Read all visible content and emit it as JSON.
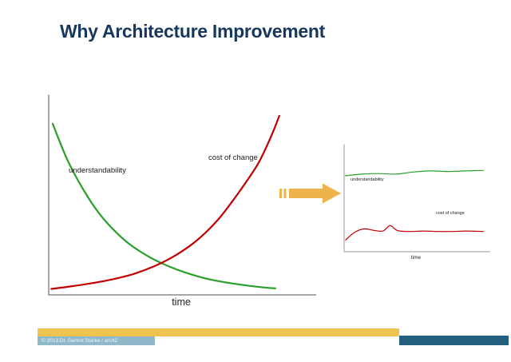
{
  "slide": {
    "title": "Why Architecture Improvement",
    "footer": {
      "copyright": "© 2013 Dr. Gernot Starke / arc42"
    }
  },
  "colors": {
    "title": "#17375d",
    "understandability_line": "#2aa02a",
    "cost_of_change_line": "#c00000",
    "arrow": "#edb44c",
    "footer_yellow_bar": "#f0c24f",
    "footer_light_blue_bar": "#8fb9cb",
    "footer_dark_blue_bar": "#235e7d"
  },
  "chart_data": [
    {
      "type": "line",
      "title": "",
      "xlabel": "time",
      "ylabel": "",
      "xlim": [
        0,
        10
      ],
      "ylim": [
        0,
        10
      ],
      "grid": false,
      "legend": "inline-labels",
      "axis_color": "#4d4d4d",
      "line_width": 2.2,
      "series": [
        {
          "name": "understandability",
          "color": "#2aa02a",
          "points": [
            [
              0.15,
              8.6
            ],
            [
              0.7,
              6.8
            ],
            [
              1.3,
              5.3
            ],
            [
              1.9,
              4.1
            ],
            [
              2.5,
              3.2
            ],
            [
              3.1,
              2.5
            ],
            [
              3.8,
              1.9
            ],
            [
              4.5,
              1.45
            ],
            [
              5.2,
              1.1
            ],
            [
              6.0,
              0.8
            ],
            [
              6.8,
              0.6
            ],
            [
              7.6,
              0.45
            ],
            [
              8.3,
              0.35
            ],
            [
              8.55,
              0.33
            ]
          ]
        },
        {
          "name": "cost of change",
          "color": "#c00000",
          "points": [
            [
              0.1,
              0.3
            ],
            [
              0.8,
              0.42
            ],
            [
              1.6,
              0.58
            ],
            [
              2.4,
              0.78
            ],
            [
              3.2,
              1.05
            ],
            [
              4.0,
              1.45
            ],
            [
              4.8,
              2.0
            ],
            [
              5.6,
              2.75
            ],
            [
              6.4,
              3.8
            ],
            [
              7.2,
              5.2
            ],
            [
              7.9,
              6.6
            ],
            [
              8.4,
              8.0
            ],
            [
              8.7,
              9.0
            ]
          ]
        }
      ]
    },
    {
      "type": "line",
      "title": "",
      "xlabel": "time",
      "ylabel": "",
      "xlim": [
        0,
        10
      ],
      "ylim": [
        0,
        10
      ],
      "grid": false,
      "legend": "inline-labels",
      "axis_color": "#9a9a9a",
      "line_width": 1.2,
      "series": [
        {
          "name": "understandability",
          "color": "#2aa02a",
          "points": [
            [
              0.1,
              7.15
            ],
            [
              1.2,
              7.3
            ],
            [
              2.4,
              7.35
            ],
            [
              3.6,
              7.3
            ],
            [
              4.8,
              7.5
            ],
            [
              6.0,
              7.6
            ],
            [
              7.2,
              7.55
            ],
            [
              8.4,
              7.6
            ],
            [
              9.7,
              7.65
            ]
          ]
        },
        {
          "name": "cost of change",
          "color": "#c00000",
          "points": [
            [
              0.1,
              1.1
            ],
            [
              0.7,
              1.8
            ],
            [
              1.4,
              2.15
            ],
            [
              2.1,
              2.0
            ],
            [
              2.7,
              1.95
            ],
            [
              3.2,
              2.45
            ],
            [
              3.7,
              2.0
            ],
            [
              4.5,
              1.9
            ],
            [
              5.5,
              1.95
            ],
            [
              6.5,
              1.9
            ],
            [
              7.5,
              1.9
            ],
            [
              8.5,
              1.95
            ],
            [
              9.7,
              1.9
            ]
          ]
        }
      ]
    }
  ]
}
